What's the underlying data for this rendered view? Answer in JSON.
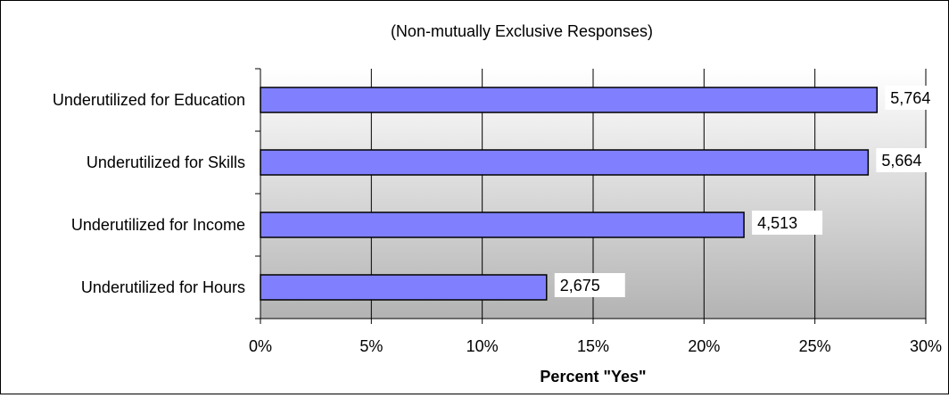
{
  "chart_data": {
    "type": "bar",
    "orientation": "horizontal",
    "title": "(Non-mutually Exclusive Responses)",
    "xlabel": "Percent \"Yes\"",
    "ylabel": "",
    "categories": [
      "Underutilized for Education",
      "Underutilized for Skills",
      "Underutilized for Income",
      "Underutilized for Hours"
    ],
    "values": [
      27.8,
      27.4,
      21.8,
      12.9
    ],
    "data_labels": [
      "5,764",
      "5,664",
      "4,513",
      "2,675"
    ],
    "xlim": [
      0,
      30
    ],
    "x_ticks": [
      0,
      5,
      10,
      15,
      20,
      25,
      30
    ],
    "x_tick_labels": [
      "0%",
      "5%",
      "10%",
      "15%",
      "20%",
      "25%",
      "30%"
    ],
    "grid": "vertical",
    "legend": "none",
    "colors": {
      "bar_fill": "#8080ff",
      "bar_stroke": "#000000",
      "plot_background_top": "#ffffff",
      "plot_background_bottom": "#b3b3b3",
      "gridline": "#000000",
      "label_box": "#ffffff"
    }
  }
}
